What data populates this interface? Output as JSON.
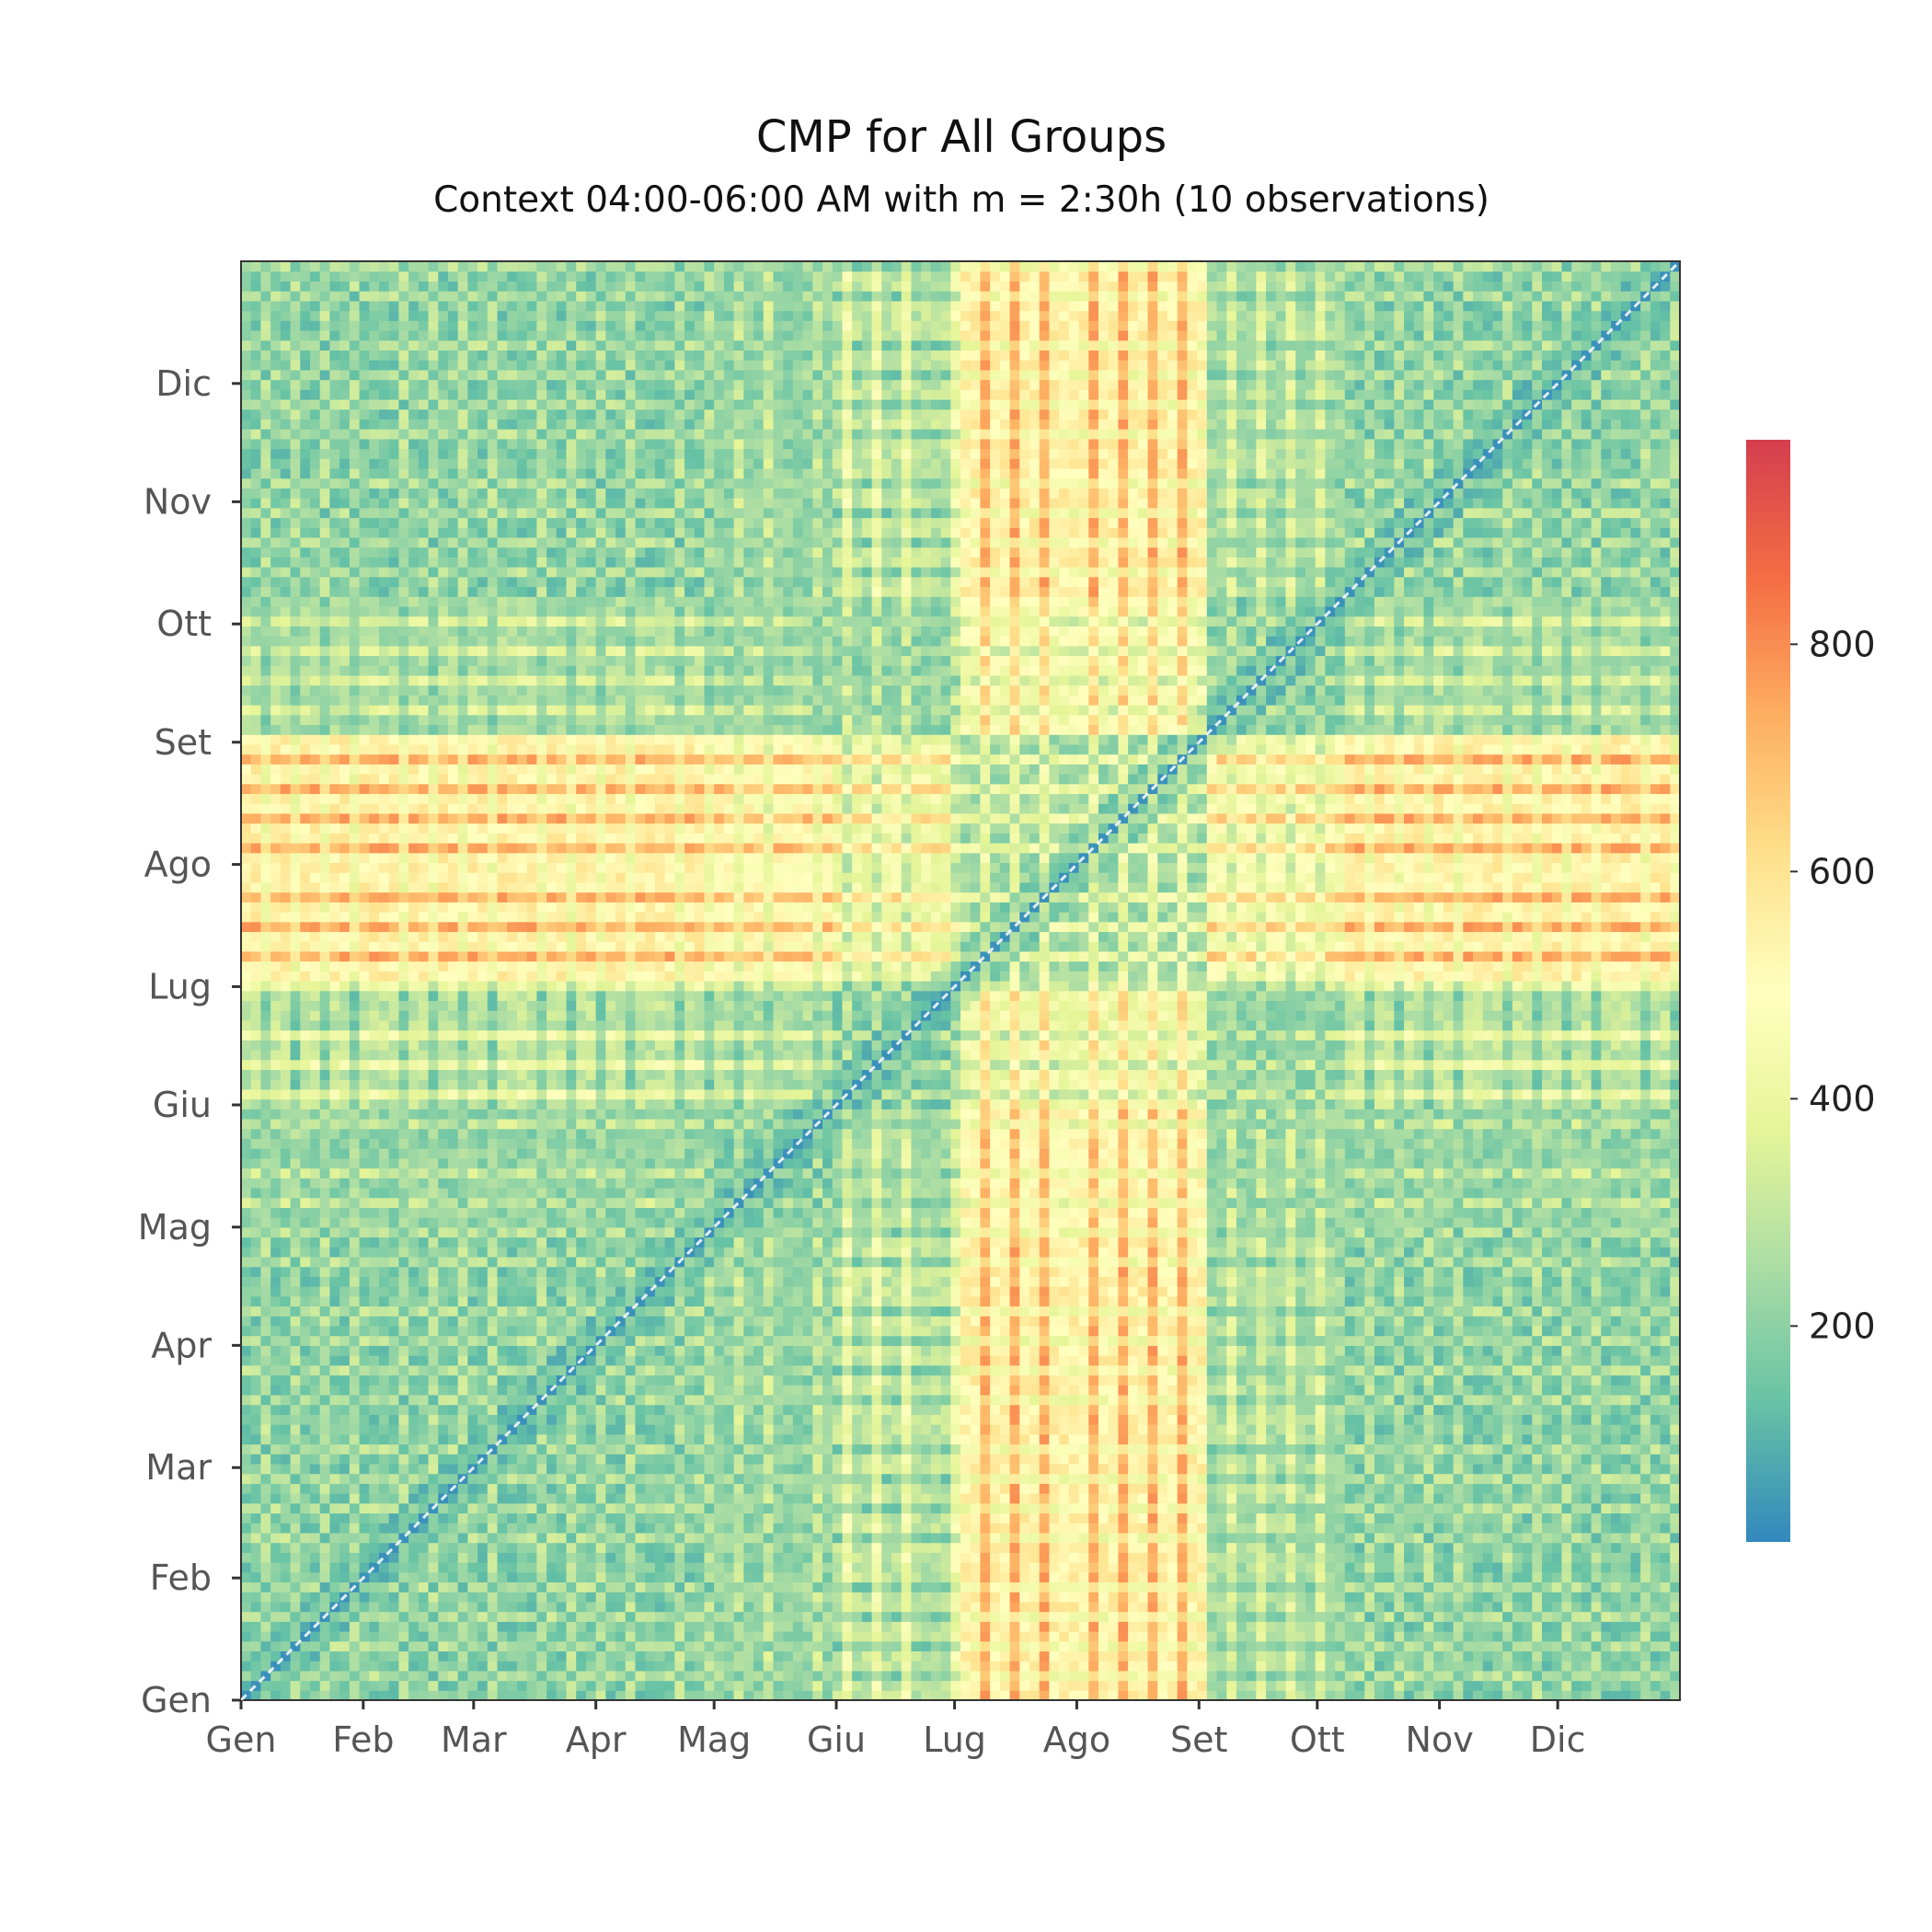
{
  "chart_data": {
    "type": "heatmap",
    "title": "CMP for All Groups",
    "subtitle": "Context 04:00-06:00 AM with m = 2:30h (10 observations)",
    "xlabel": "",
    "ylabel": "",
    "x_ticks": [
      "Gen",
      "Feb",
      "Mar",
      "Apr",
      "Mag",
      "Giu",
      "Lug",
      "Ago",
      "Set",
      "Ott",
      "Nov",
      "Dic"
    ],
    "y_ticks": [
      "Gen",
      "Feb",
      "Mar",
      "Apr",
      "Mag",
      "Giu",
      "Lug",
      "Ago",
      "Set",
      "Ott",
      "Nov",
      "Dic"
    ],
    "month_start_day": [
      0,
      31,
      59,
      90,
      120,
      151,
      181,
      212,
      243,
      273,
      304,
      334
    ],
    "days": 365,
    "colorbar": {
      "ticks": [
        200,
        400,
        600,
        800
      ],
      "range": [
        10,
        980
      ],
      "colormap": "Spectral_r",
      "stops": [
        "#3288bd",
        "#66c2a5",
        "#abdda4",
        "#e6f598",
        "#ffffbf",
        "#fee08b",
        "#fdae61",
        "#f46d43",
        "#d53e4f"
      ]
    },
    "grid": false,
    "diagonal": "self-match (minimum)",
    "value_description": "Distance between day i and day j; low (blue) within same season, high (red) between early July–August and the rest",
    "column_means_approx": {
      "Gen": 260,
      "Feb": 250,
      "Mar": 255,
      "Apr": 300,
      "Mag": 280,
      "Giu": 360,
      "Lug": 620,
      "Ago": 560,
      "Set": 330,
      "Ott": 300,
      "Nov": 270,
      "Dic": 280
    }
  }
}
